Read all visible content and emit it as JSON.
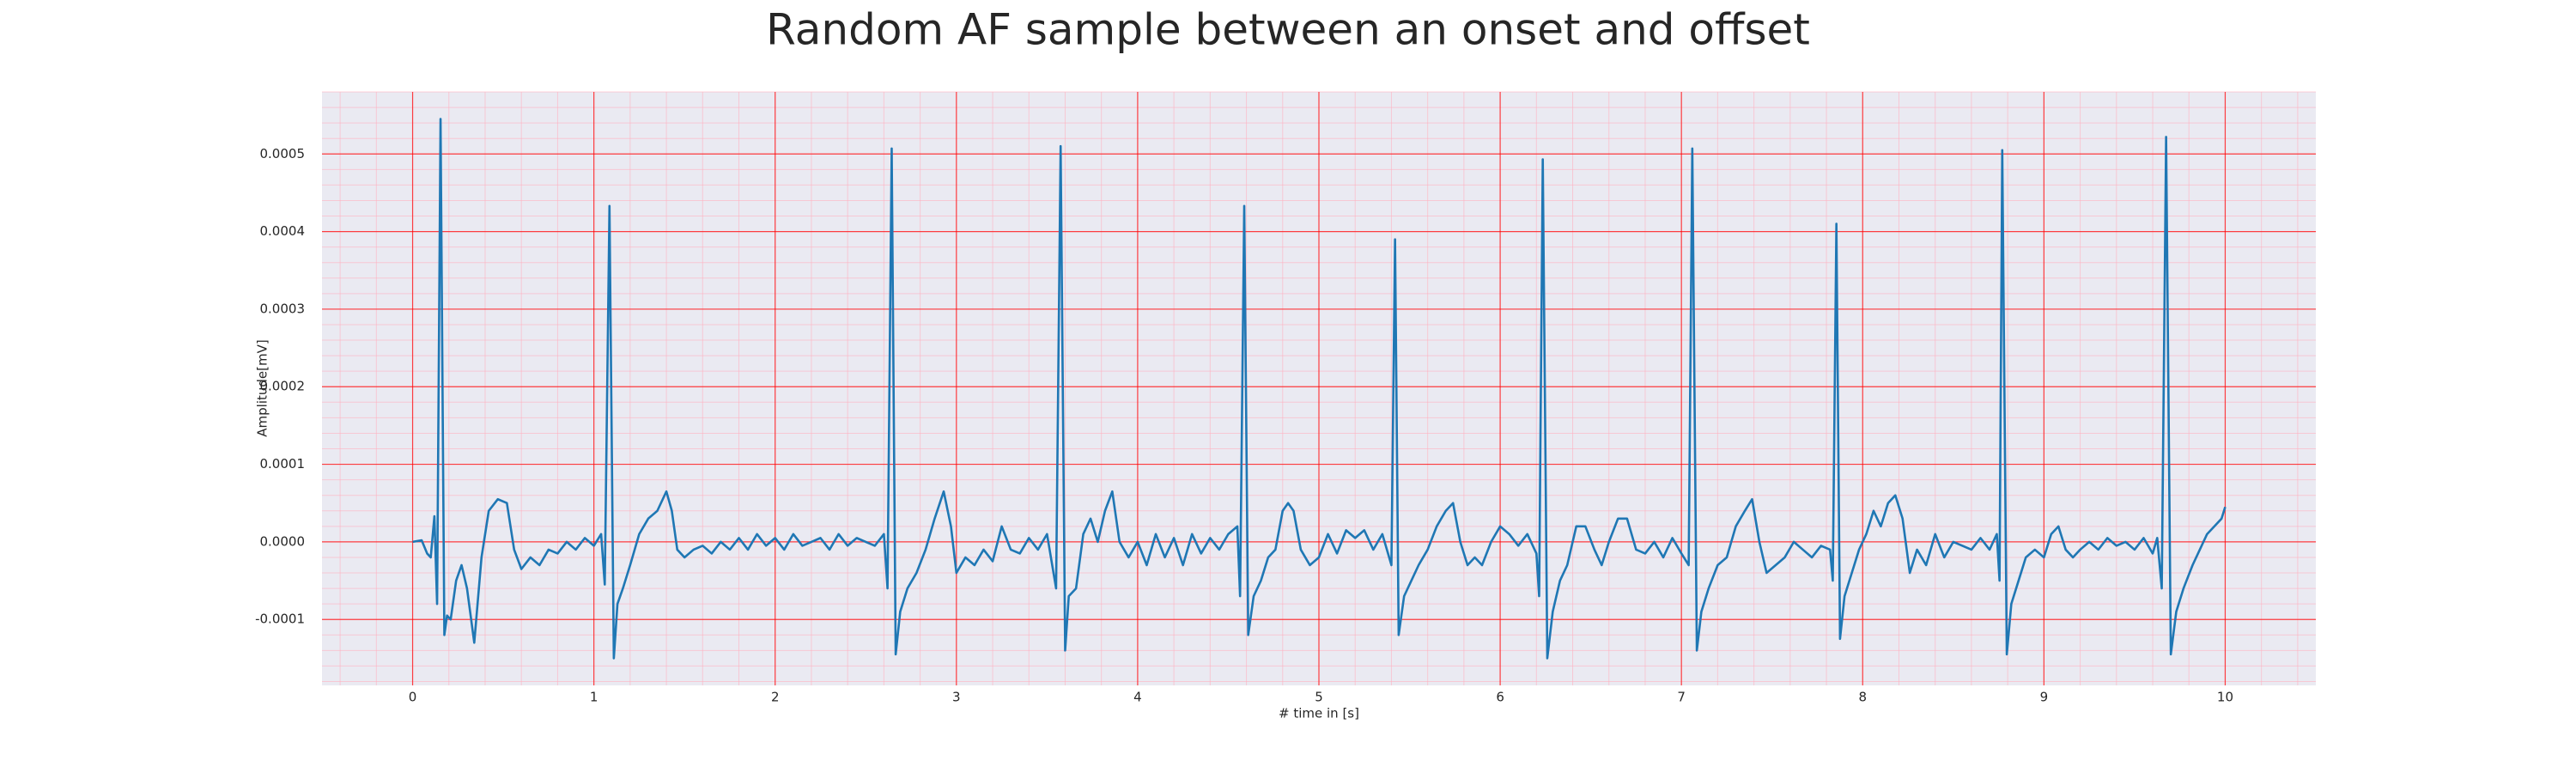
{
  "chart_data": {
    "type": "line",
    "title": "Random AF sample between an onset and offset",
    "xlabel": "# time in [s]",
    "ylabel": "Amplitude[mV]",
    "color": "#1f77b4",
    "background": "#eaeaf2",
    "grid": true,
    "grid_color": "#ff0000",
    "minor_grid_color": "#ffb0c0",
    "xlim": [
      -0.5,
      10.5
    ],
    "ylim": [
      -0.000185,
      0.00058
    ],
    "xticks": [
      0,
      1,
      2,
      3,
      4,
      5,
      6,
      7,
      8,
      9,
      10
    ],
    "yticks": [
      {
        "value": -0.0001,
        "label": "-0.0001"
      },
      {
        "value": 0,
        "label": "0.0000"
      },
      {
        "value": 0.0001,
        "label": "0.0001"
      },
      {
        "value": 0.0002,
        "label": "0.0002"
      },
      {
        "value": 0.0003,
        "label": "0.0003"
      },
      {
        "value": 0.0004,
        "label": "0.0004"
      },
      {
        "value": 0.0005,
        "label": "0.0005"
      }
    ],
    "xminorticks": [
      -0.4,
      -0.2,
      0,
      0.2,
      0.4,
      0.6,
      0.8,
      1,
      1.2,
      1.4,
      1.6,
      1.8,
      2,
      2.2,
      2.4,
      2.6,
      2.8,
      3,
      3.2,
      3.4,
      3.6,
      3.8,
      4,
      4.2,
      4.4,
      4.6,
      4.8,
      5,
      5.2,
      5.4,
      5.6,
      5.8,
      6,
      6.2,
      6.4,
      6.6,
      6.8,
      7,
      7.2,
      7.4,
      7.6,
      7.8,
      8,
      8.2,
      8.4,
      8.6,
      8.8,
      9,
      9.2,
      9.4,
      9.6,
      9.8,
      10,
      10.2,
      10.4
    ],
    "yminorticks": [
      -0.00018,
      -0.00016,
      -0.00014,
      -0.00012,
      -0.0001,
      -8e-05,
      -6e-05,
      -4e-05,
      -2e-05,
      0,
      2e-05,
      4e-05,
      6e-05,
      8e-05,
      0.0001,
      0.00012,
      0.00014,
      0.00016,
      0.00018,
      0.0002,
      0.00022,
      0.00024,
      0.00026,
      0.00028,
      0.0003,
      0.00032,
      0.00034,
      0.00036,
      0.00038,
      0.0004,
      0.00042,
      0.00044,
      0.00046,
      0.00048,
      0.0005,
      0.00052,
      0.00054,
      0.00056,
      0.00058
    ],
    "x": [
      0,
      0.05,
      0.08,
      0.1,
      0.12,
      0.135,
      0.154,
      0.175,
      0.19,
      0.21,
      0.24,
      0.27,
      0.3,
      0.34,
      0.38,
      0.42,
      0.47,
      0.52,
      0.56,
      0.6,
      0.65,
      0.7,
      0.75,
      0.8,
      0.85,
      0.9,
      0.95,
      1,
      1.04,
      1.06,
      1.086,
      1.11,
      1.13,
      1.16,
      1.2,
      1.25,
      1.3,
      1.35,
      1.4,
      1.43,
      1.46,
      1.5,
      1.55,
      1.6,
      1.65,
      1.7,
      1.75,
      1.8,
      1.85,
      1.9,
      1.95,
      2,
      2.05,
      2.1,
      2.15,
      2.2,
      2.25,
      2.3,
      2.35,
      2.4,
      2.45,
      2.5,
      2.55,
      2.6,
      2.62,
      2.643,
      2.665,
      2.69,
      2.73,
      2.78,
      2.83,
      2.88,
      2.93,
      2.97,
      3,
      3.05,
      3.1,
      3.15,
      3.2,
      3.25,
      3.3,
      3.35,
      3.4,
      3.45,
      3.5,
      3.55,
      3.575,
      3.6,
      3.62,
      3.66,
      3.7,
      3.74,
      3.78,
      3.82,
      3.86,
      3.9,
      3.95,
      4,
      4.05,
      4.1,
      4.15,
      4.2,
      4.25,
      4.3,
      4.35,
      4.4,
      4.45,
      4.5,
      4.55,
      4.565,
      4.588,
      4.61,
      4.64,
      4.68,
      4.72,
      4.76,
      4.8,
      4.83,
      4.86,
      4.9,
      4.95,
      5,
      5.05,
      5.1,
      5.15,
      5.2,
      5.25,
      5.3,
      5.35,
      5.4,
      5.42,
      5.44,
      5.47,
      5.51,
      5.55,
      5.6,
      5.65,
      5.7,
      5.74,
      5.78,
      5.82,
      5.86,
      5.9,
      5.95,
      6,
      6.05,
      6.1,
      6.15,
      6.2,
      6.215,
      6.235,
      6.26,
      6.29,
      6.33,
      6.37,
      6.42,
      6.47,
      6.52,
      6.56,
      6.6,
      6.65,
      6.7,
      6.75,
      6.8,
      6.85,
      6.9,
      6.95,
      7,
      7.04,
      7.06,
      7.085,
      7.11,
      7.15,
      7.2,
      7.25,
      7.3,
      7.35,
      7.39,
      7.43,
      7.47,
      7.52,
      7.57,
      7.62,
      7.67,
      7.72,
      7.77,
      7.82,
      7.835,
      7.855,
      7.875,
      7.9,
      7.94,
      7.98,
      8.02,
      8.06,
      8.1,
      8.14,
      8.18,
      8.22,
      8.26,
      8.3,
      8.35,
      8.4,
      8.45,
      8.5,
      8.55,
      8.6,
      8.65,
      8.7,
      8.74,
      8.755,
      8.77,
      8.795,
      8.82,
      8.86,
      8.9,
      8.95,
      9,
      9.04,
      9.08,
      9.12,
      9.16,
      9.2,
      9.25,
      9.3,
      9.35,
      9.4,
      9.45,
      9.5,
      9.55,
      9.6,
      9.625,
      9.65,
      9.674,
      9.7,
      9.73,
      9.77,
      9.82,
      9.86,
      9.9,
      9.94,
      9.98,
      10
    ],
    "values": [
      0,
      2e-06,
      -1.5e-05,
      -2e-05,
      3.3e-05,
      -8e-05,
      0.000545,
      -0.00012,
      -9.5e-05,
      -0.0001,
      -5e-05,
      -3e-05,
      -6e-05,
      -0.00013,
      -2e-05,
      4e-05,
      5.5e-05,
      5e-05,
      -1e-05,
      -3.5e-05,
      -2e-05,
      -3e-05,
      -1e-05,
      -1.5e-05,
      0,
      -1e-05,
      5e-06,
      -5e-06,
      1e-05,
      -5.5e-05,
      0.000433,
      -0.00015,
      -8e-05,
      -6e-05,
      -3e-05,
      1e-05,
      3e-05,
      4e-05,
      6.5e-05,
      4e-05,
      -1e-05,
      -2e-05,
      -1e-05,
      -5e-06,
      -1.5e-05,
      0,
      -1e-05,
      5e-06,
      -1e-05,
      1e-05,
      -5e-06,
      5e-06,
      -1e-05,
      1e-05,
      -5e-06,
      0,
      5e-06,
      -1e-05,
      1e-05,
      -5e-06,
      5e-06,
      0,
      -5e-06,
      1e-05,
      -6e-05,
      0.000507,
      -0.000145,
      -9e-05,
      -6e-05,
      -4e-05,
      -1e-05,
      3e-05,
      6.5e-05,
      2e-05,
      -4e-05,
      -2e-05,
      -3e-05,
      -1e-05,
      -2.5e-05,
      2e-05,
      -1e-05,
      -1.5e-05,
      5e-06,
      -1e-05,
      1e-05,
      -6e-05,
      0.00051,
      -0.00014,
      -7e-05,
      -6e-05,
      1e-05,
      3e-05,
      0,
      4e-05,
      6.5e-05,
      0,
      -2e-05,
      0,
      -3e-05,
      1e-05,
      -2e-05,
      5e-06,
      -3e-05,
      1e-05,
      -1.5e-05,
      5e-06,
      -1e-05,
      1e-05,
      2e-05,
      -7e-05,
      0.000433,
      -0.00012,
      -7e-05,
      -5e-05,
      -2e-05,
      -1e-05,
      4e-05,
      5e-05,
      4e-05,
      -1e-05,
      -3e-05,
      -2e-05,
      1e-05,
      -1.5e-05,
      1.5e-05,
      5e-06,
      1.5e-05,
      -1e-05,
      1e-05,
      -3e-05,
      0.00039,
      -0.00012,
      -7e-05,
      -5e-05,
      -3e-05,
      -1e-05,
      2e-05,
      4e-05,
      5e-05,
      0,
      -3e-05,
      -2e-05,
      -3e-05,
      0,
      2e-05,
      1e-05,
      -5e-06,
      1e-05,
      -1.5e-05,
      -7e-05,
      0.000493,
      -0.00015,
      -9e-05,
      -5e-05,
      -3e-05,
      2e-05,
      2e-05,
      -1e-05,
      -3e-05,
      0,
      3e-05,
      3e-05,
      -1e-05,
      -1.5e-05,
      0,
      -2e-05,
      5e-06,
      -1.5e-05,
      -3e-05,
      0.000507,
      -0.00014,
      -9e-05,
      -6e-05,
      -3e-05,
      -2e-05,
      2e-05,
      4e-05,
      5.5e-05,
      0,
      -4e-05,
      -3e-05,
      -2e-05,
      0,
      -1e-05,
      -2e-05,
      -5e-06,
      -1e-05,
      -5e-05,
      0.00041,
      -0.000125,
      -7e-05,
      -4e-05,
      -1e-05,
      1e-05,
      4e-05,
      2e-05,
      5e-05,
      6e-05,
      3e-05,
      -4e-05,
      -1e-05,
      -3e-05,
      1e-05,
      -2e-05,
      0,
      -5e-06,
      -1e-05,
      5e-06,
      -1e-05,
      1e-05,
      -5e-05,
      0.000505,
      -0.000145,
      -8e-05,
      -5e-05,
      -2e-05,
      -1e-05,
      -2e-05,
      1e-05,
      2e-05,
      -1e-05,
      -2e-05,
      -1e-05,
      0,
      -1e-05,
      5e-06,
      -5e-06,
      0,
      -1e-05,
      5e-06,
      -1.5e-05,
      5e-06,
      -6e-05,
      0.000522,
      -0.000145,
      -9e-05,
      -6e-05,
      -3e-05,
      -1e-05,
      1e-05,
      2e-05,
      3e-05,
      4.5e-05
    ]
  }
}
